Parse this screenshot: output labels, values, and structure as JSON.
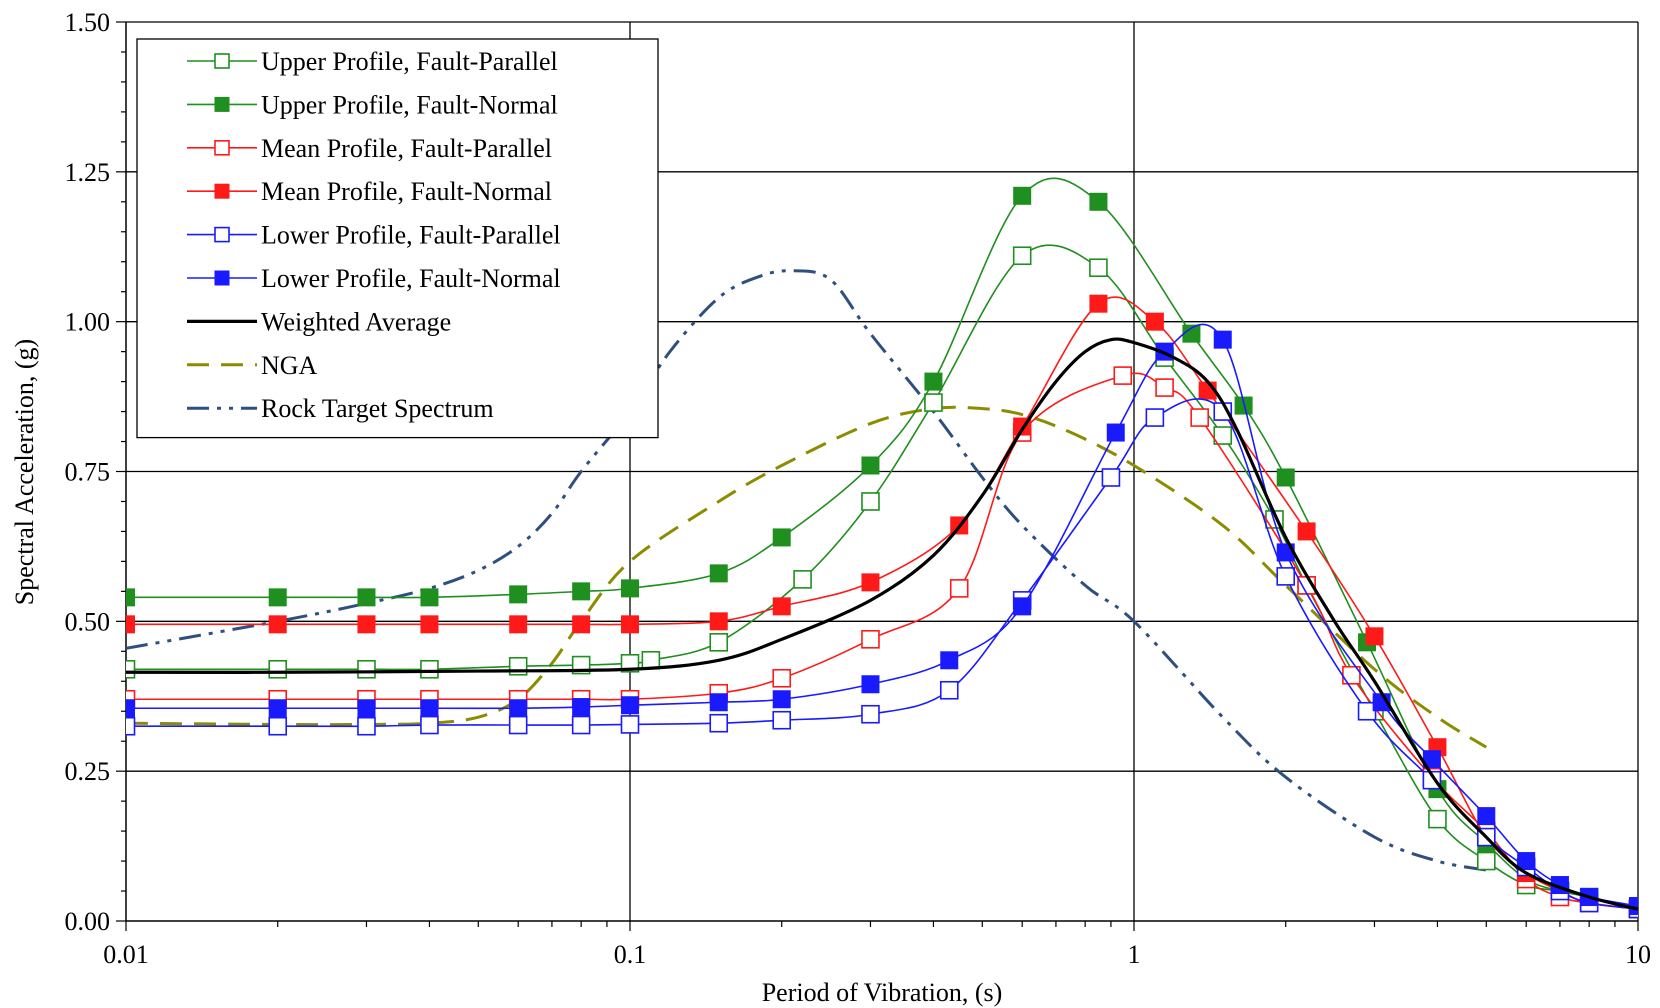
{
  "chart_data": {
    "type": "line",
    "title": "",
    "xlabel": "Period of Vibration, (s)",
    "ylabel": "Spectral Acceleration, (g)",
    "xscale": "log",
    "xlim": [
      0.01,
      10
    ],
    "ylim": [
      0,
      1.5
    ],
    "x_tick_labels": [
      "0.01",
      "0.1",
      "1",
      "10"
    ],
    "y_tick_labels": [
      "0.00",
      "0.25",
      "0.50",
      "0.75",
      "1.00",
      "1.25",
      "1.50"
    ],
    "grid": true,
    "legend_position": "top-left",
    "series": [
      {
        "name": "Upper Profile, Fault-Parallel",
        "color": "#1f8f1f",
        "marker": "square-open",
        "line": "solid",
        "x": [
          0.01,
          0.02,
          0.03,
          0.04,
          0.06,
          0.08,
          0.1,
          0.11,
          0.15,
          0.22,
          0.3,
          0.4,
          0.6,
          0.85,
          1.15,
          1.5,
          1.9,
          2.2,
          3.0,
          4.0,
          5.0,
          6.0,
          7.0,
          8.0,
          10.0
        ],
        "y": [
          0.42,
          0.42,
          0.42,
          0.42,
          0.425,
          0.427,
          0.43,
          0.435,
          0.465,
          0.57,
          0.7,
          0.865,
          1.11,
          1.09,
          0.94,
          0.81,
          0.67,
          0.56,
          0.35,
          0.17,
          0.1,
          0.06,
          0.05,
          0.04,
          0.02
        ]
      },
      {
        "name": "Upper Profile, Fault-Normal",
        "color": "#1f8f1f",
        "marker": "square-filled",
        "line": "solid",
        "x": [
          0.01,
          0.02,
          0.03,
          0.04,
          0.06,
          0.08,
          0.1,
          0.15,
          0.2,
          0.3,
          0.4,
          0.6,
          0.85,
          1.3,
          1.65,
          2.0,
          2.9,
          4.0,
          5.0,
          6.0,
          7.0,
          8.0,
          10.0
        ],
        "y": [
          0.54,
          0.54,
          0.54,
          0.54,
          0.545,
          0.55,
          0.555,
          0.58,
          0.64,
          0.76,
          0.9,
          1.21,
          1.2,
          0.98,
          0.86,
          0.74,
          0.465,
          0.22,
          0.13,
          0.07,
          0.05,
          0.04,
          0.02
        ]
      },
      {
        "name": "Mean Profile, Fault-Parallel",
        "color": "#ff1a1a",
        "marker": "square-open",
        "line": "solid",
        "x": [
          0.01,
          0.02,
          0.03,
          0.04,
          0.06,
          0.08,
          0.1,
          0.15,
          0.2,
          0.3,
          0.45,
          0.6,
          0.95,
          1.15,
          1.35,
          2.2,
          2.7,
          3.9,
          5.0,
          6.0,
          7.0,
          8.0,
          10.0
        ],
        "y": [
          0.37,
          0.37,
          0.37,
          0.37,
          0.37,
          0.37,
          0.37,
          0.38,
          0.405,
          0.47,
          0.555,
          0.815,
          0.91,
          0.89,
          0.84,
          0.56,
          0.41,
          0.24,
          0.15,
          0.07,
          0.04,
          0.03,
          0.02
        ]
      },
      {
        "name": "Mean Profile, Fault-Normal",
        "color": "#ff1a1a",
        "marker": "square-filled",
        "line": "solid",
        "x": [
          0.01,
          0.02,
          0.03,
          0.04,
          0.06,
          0.08,
          0.1,
          0.15,
          0.2,
          0.3,
          0.45,
          0.6,
          0.85,
          1.1,
          1.4,
          2.2,
          3.0,
          4.0,
          5.0,
          6.0,
          7.0,
          8.0,
          10.0
        ],
        "y": [
          0.495,
          0.495,
          0.495,
          0.495,
          0.495,
          0.495,
          0.495,
          0.5,
          0.525,
          0.565,
          0.66,
          0.825,
          1.03,
          1.0,
          0.885,
          0.65,
          0.475,
          0.29,
          0.14,
          0.08,
          0.05,
          0.03,
          0.02
        ]
      },
      {
        "name": "Lower Profile, Fault-Parallel",
        "color": "#1a1aff",
        "marker": "square-open",
        "line": "solid",
        "x": [
          0.01,
          0.02,
          0.03,
          0.04,
          0.06,
          0.08,
          0.1,
          0.15,
          0.2,
          0.3,
          0.43,
          0.6,
          0.9,
          1.1,
          1.5,
          2.0,
          2.9,
          3.9,
          5.0,
          6.0,
          7.0,
          8.0,
          10.0
        ],
        "y": [
          0.325,
          0.325,
          0.325,
          0.327,
          0.327,
          0.327,
          0.328,
          0.33,
          0.335,
          0.345,
          0.385,
          0.535,
          0.74,
          0.84,
          0.85,
          0.575,
          0.35,
          0.235,
          0.14,
          0.09,
          0.05,
          0.03,
          0.02
        ]
      },
      {
        "name": "Lower Profile, Fault-Normal",
        "color": "#1a1aff",
        "marker": "square-filled",
        "line": "solid",
        "x": [
          0.01,
          0.02,
          0.03,
          0.04,
          0.06,
          0.08,
          0.1,
          0.15,
          0.2,
          0.3,
          0.43,
          0.6,
          0.92,
          1.15,
          1.5,
          2.0,
          3.1,
          3.9,
          5.0,
          6.0,
          7.0,
          8.0,
          10.0
        ],
        "y": [
          0.355,
          0.355,
          0.355,
          0.355,
          0.355,
          0.357,
          0.36,
          0.365,
          0.37,
          0.395,
          0.435,
          0.525,
          0.815,
          0.95,
          0.97,
          0.615,
          0.365,
          0.27,
          0.175,
          0.1,
          0.06,
          0.04,
          0.025
        ]
      },
      {
        "name": "Weighted Average",
        "color": "#000000",
        "marker": "none",
        "line": "solid-thick",
        "x": [
          0.01,
          0.02,
          0.05,
          0.1,
          0.15,
          0.2,
          0.3,
          0.4,
          0.5,
          0.6,
          0.7,
          0.8,
          0.9,
          1.0,
          1.2,
          1.4,
          1.6,
          2.0,
          2.5,
          3.0,
          4.0,
          5.0,
          6.0,
          8.0,
          10.0
        ],
        "y": [
          0.415,
          0.415,
          0.417,
          0.42,
          0.435,
          0.47,
          0.535,
          0.61,
          0.71,
          0.82,
          0.9,
          0.95,
          0.97,
          0.965,
          0.94,
          0.9,
          0.82,
          0.64,
          0.5,
          0.4,
          0.23,
          0.14,
          0.08,
          0.04,
          0.02
        ]
      },
      {
        "name": "NGA",
        "color": "#8c8c00",
        "marker": "none",
        "line": "dashed",
        "x": [
          0.01,
          0.02,
          0.03,
          0.04,
          0.05,
          0.06,
          0.07,
          0.08,
          0.1,
          0.15,
          0.2,
          0.3,
          0.4,
          0.5,
          0.6,
          0.75,
          1.0,
          1.5,
          2.0,
          3.0,
          4.0,
          5.0
        ],
        "y": [
          0.33,
          0.328,
          0.328,
          0.33,
          0.34,
          0.37,
          0.43,
          0.5,
          0.6,
          0.7,
          0.76,
          0.83,
          0.855,
          0.855,
          0.845,
          0.815,
          0.76,
          0.66,
          0.56,
          0.42,
          0.34,
          0.29
        ]
      },
      {
        "name": "Rock Target Spectrum",
        "color": "#2f4f7f",
        "marker": "none",
        "line": "dash-dot-dot",
        "x": [
          0.01,
          0.02,
          0.03,
          0.04,
          0.05,
          0.06,
          0.07,
          0.08,
          0.1,
          0.12,
          0.15,
          0.18,
          0.21,
          0.25,
          0.3,
          0.4,
          0.5,
          0.6,
          0.8,
          1.0,
          1.5,
          2.0,
          3.0,
          4.0,
          5.0
        ],
        "y": [
          0.455,
          0.5,
          0.53,
          0.555,
          0.585,
          0.625,
          0.68,
          0.75,
          0.85,
          0.95,
          1.04,
          1.075,
          1.085,
          1.07,
          0.98,
          0.85,
          0.74,
          0.66,
          0.56,
          0.5,
          0.34,
          0.24,
          0.14,
          0.1,
          0.085
        ]
      }
    ]
  }
}
